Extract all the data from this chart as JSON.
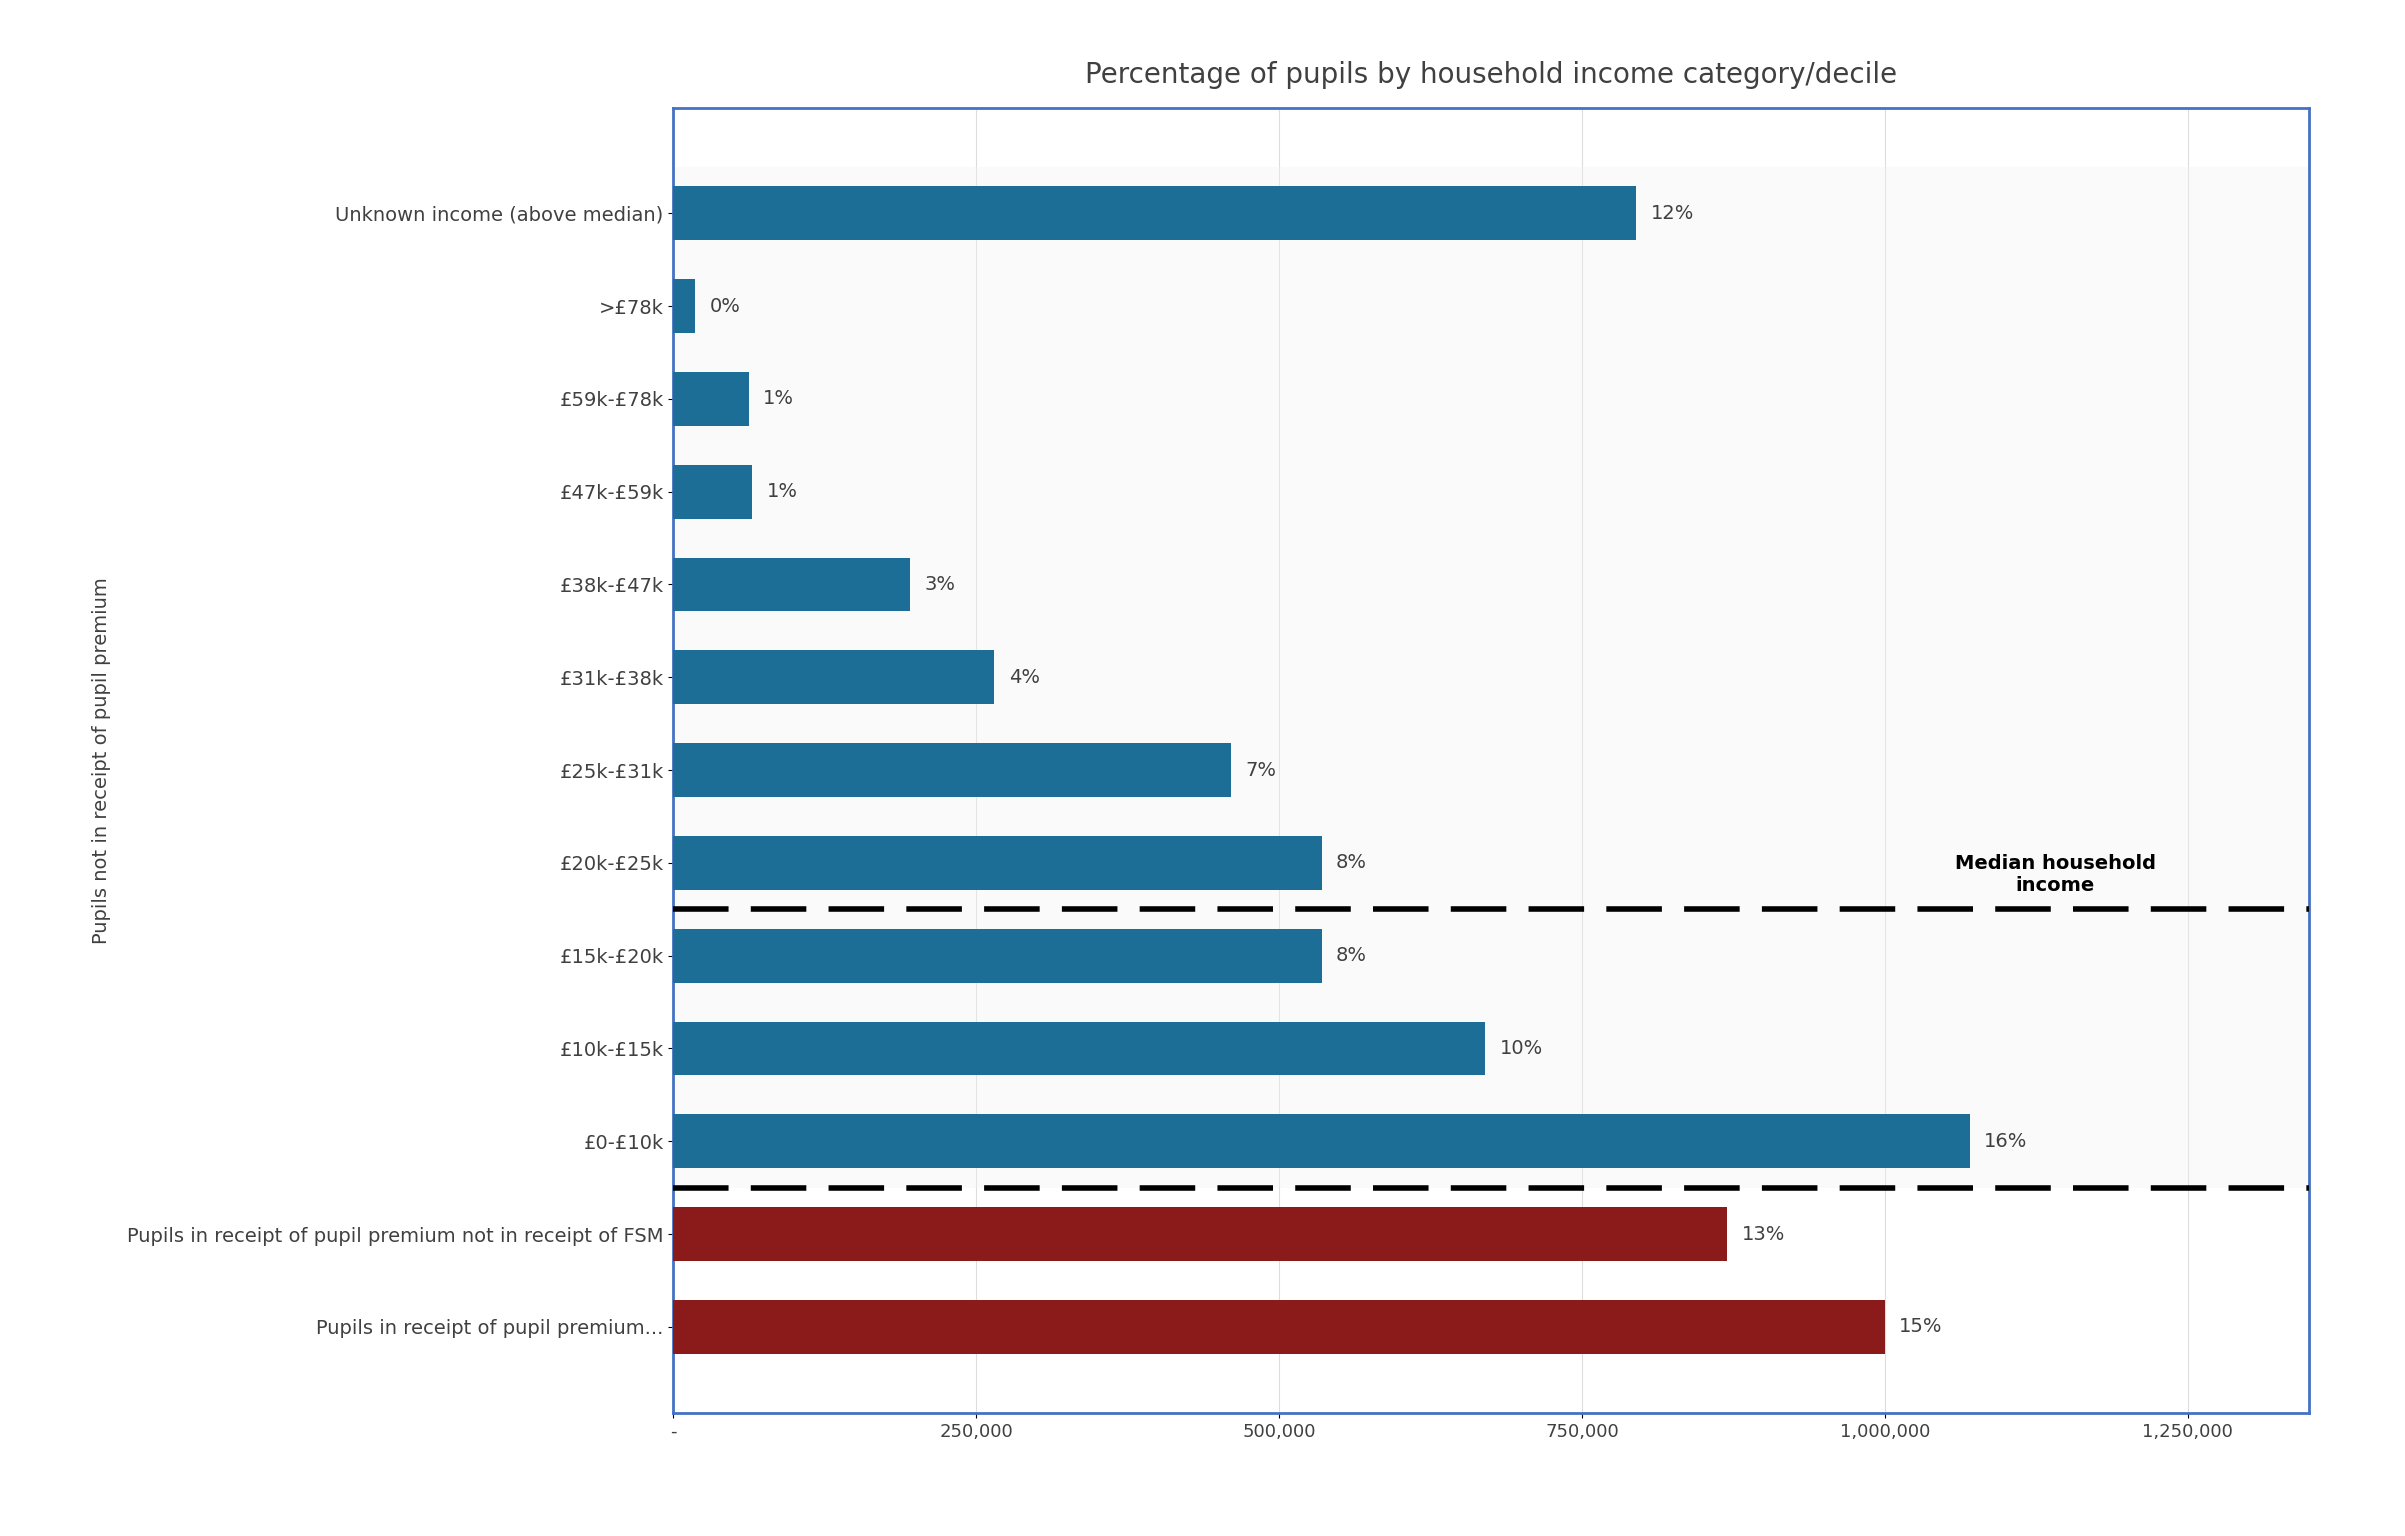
{
  "title": "Percentage of pupils by household income category/decile",
  "categories": [
    "Pupils in receipt of pupil premium...",
    "Pupils in receipt of pupil premium not in receipt of FSM",
    "£0-£10k",
    "£10k-£15k",
    "£15k-£20k",
    "£20k-£25k",
    "£25k-£31k",
    "£31k-£38k",
    "£38k-£47k",
    "£47k-£59k",
    "£59k-£78k",
    ">£78k",
    "Unknown income (above median)"
  ],
  "values": [
    1000000,
    870000,
    1070000,
    670000,
    535000,
    535000,
    460000,
    265000,
    195000,
    65000,
    62000,
    18000,
    795000
  ],
  "percentages": [
    "15%",
    "13%",
    "16%",
    "10%",
    "8%",
    "8%",
    "7%",
    "4%",
    "3%",
    "1%",
    "1%",
    "0%",
    "12%"
  ],
  "bar_colors": [
    "#8B1A1A",
    "#8B1A1A",
    "#1C6E96",
    "#1C6E96",
    "#1C6E96",
    "#1C6E96",
    "#1C6E96",
    "#1C6E96",
    "#1C6E96",
    "#1C6E96",
    "#1C6E96",
    "#1C6E96",
    "#1C6E96"
  ],
  "ylabel": "Pupils not in receipt of pupil premium",
  "xlim_max": 1350000,
  "xticks": [
    0,
    250000,
    500000,
    750000,
    1000000,
    1250000
  ],
  "xtick_labels": [
    "-",
    "250,000",
    "500,000",
    "750,000",
    "1,000,000",
    "1,250,000"
  ],
  "median_annotation": "Median household\nincome",
  "background_color": "#FFFFFF",
  "border_color": "#4472C4",
  "title_fontsize": 20,
  "label_fontsize": 14,
  "tick_fontsize": 13,
  "pct_fontsize": 14,
  "ylabel_fontsize": 14,
  "bar_height": 0.58,
  "grid_color": "#DDDDDD",
  "text_color": "#404040"
}
